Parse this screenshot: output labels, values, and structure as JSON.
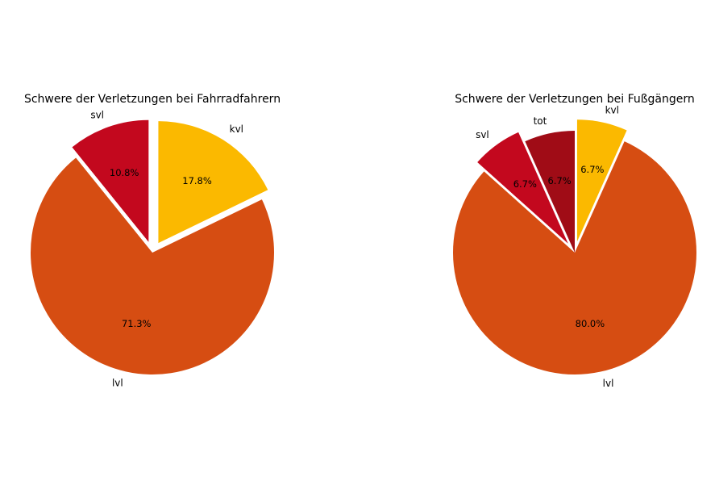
{
  "chart_data": [
    {
      "type": "pie",
      "title": "Schwere der Verletzungen bei Fahrradfahrern",
      "slices": [
        {
          "label": "kvl",
          "value": 17.8,
          "pct_label": "17.8%",
          "color": "#FBB900",
          "explode": true
        },
        {
          "label": "lvl",
          "value": 71.3,
          "pct_label": "71.3%",
          "color": "#D64D12",
          "explode": false
        },
        {
          "label": "svl",
          "value": 10.8,
          "pct_label": "10.8%",
          "color": "#C3081E",
          "explode": true
        }
      ],
      "start_angle": 90,
      "direction": "clockwise",
      "legend": "none"
    },
    {
      "type": "pie",
      "title": "Schwere der Verletzungen bei Fußgängern",
      "slices": [
        {
          "label": "kvl",
          "value": 6.7,
          "pct_label": "6.7%",
          "color": "#FBB900",
          "explode": true
        },
        {
          "label": "lvl",
          "value": 80.0,
          "pct_label": "80.0%",
          "color": "#D64D12",
          "explode": false
        },
        {
          "label": "svl",
          "value": 6.7,
          "pct_label": "6.7%",
          "color": "#C3081E",
          "explode": true
        },
        {
          "label": "tot",
          "value": 6.7,
          "pct_label": "6.7%",
          "color": "#A00C16",
          "explode": false
        }
      ],
      "start_angle": 90,
      "direction": "clockwise",
      "legend": "none"
    }
  ]
}
